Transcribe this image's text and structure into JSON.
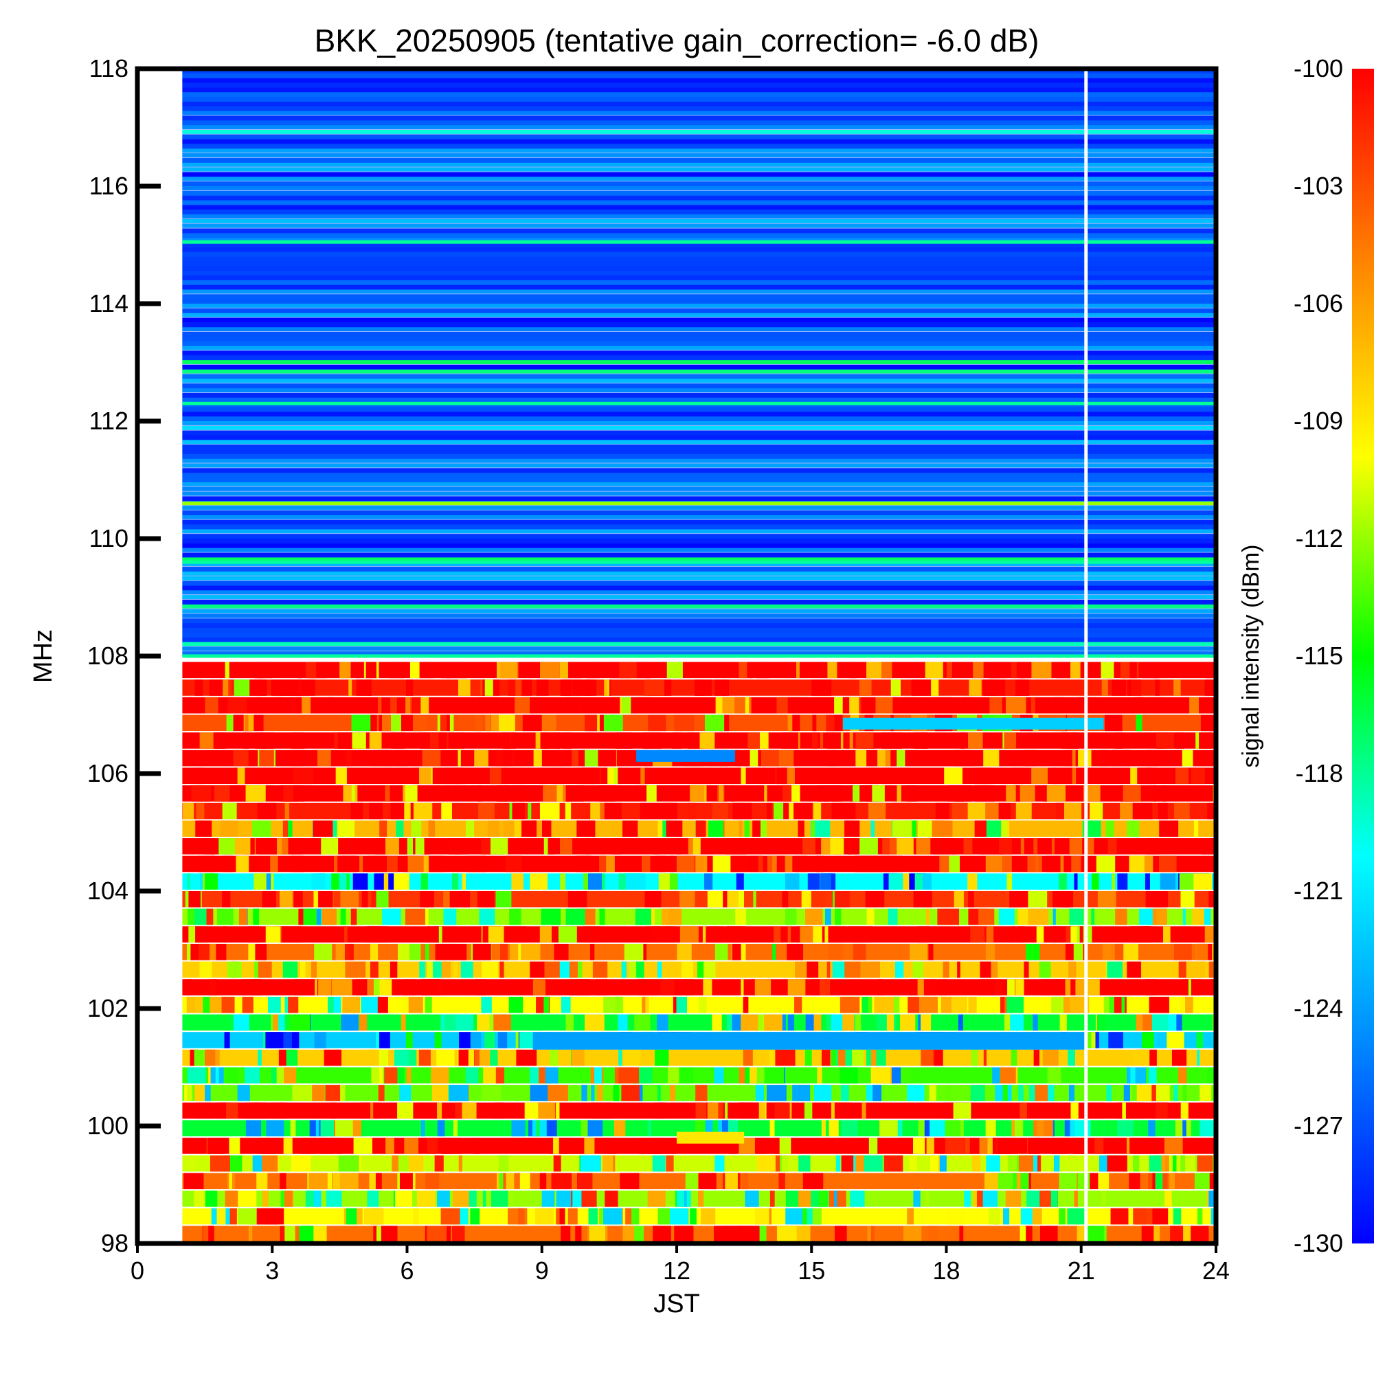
{
  "chart_data": {
    "type": "heatmap",
    "title": "BKK_20250905 (tentative gain_correction= -6.0 dB)",
    "xlabel": "JST",
    "ylabel": "MHz",
    "xlim": [
      0,
      24
    ],
    "ylim": [
      98,
      118
    ],
    "x_ticks": [
      0,
      3,
      6,
      9,
      12,
      15,
      18,
      21,
      24
    ],
    "y_ticks": [
      98,
      100,
      102,
      104,
      106,
      108,
      110,
      112,
      114,
      116,
      118
    ],
    "data_time_range": [
      1,
      24
    ],
    "data_gap_time": 21.1,
    "colorbar": {
      "label": "signal intensity (dBm)",
      "range": [
        -130,
        -100
      ],
      "ticks": [
        -100,
        -103,
        -106,
        -109,
        -112,
        -115,
        -118,
        -121,
        -124,
        -127,
        -130
      ],
      "colors": [
        "#0000ff",
        "#0088ff",
        "#00ffff",
        "#00ff00",
        "#ffff00",
        "#ff8800",
        "#ff0000"
      ]
    },
    "regions": [
      {
        "freq_range": [
          108,
          118
        ],
        "typical_dbm": -127,
        "description_level": "low"
      },
      {
        "freq_range": [
          98,
          108
        ],
        "typical_dbm": -100,
        "description_level": "high"
      }
    ],
    "strong_bands_mhz": [
      118.0,
      115.05,
      112.3,
      110.6,
      109.6,
      108.0
    ],
    "fm_band_rows": [
      {
        "freq": 107.75,
        "dbm": -100
      },
      {
        "freq": 107.45,
        "dbm": -101
      },
      {
        "freq": 107.15,
        "dbm": -100
      },
      {
        "freq": 106.85,
        "dbm": -103
      },
      {
        "freq": 106.55,
        "dbm": -100
      },
      {
        "freq": 106.25,
        "dbm": -100
      },
      {
        "freq": 105.95,
        "dbm": -100
      },
      {
        "freq": 105.65,
        "dbm": -100
      },
      {
        "freq": 105.35,
        "dbm": -101
      },
      {
        "freq": 105.05,
        "dbm": -107
      },
      {
        "freq": 104.75,
        "dbm": -100
      },
      {
        "freq": 104.45,
        "dbm": -100
      },
      {
        "freq": 104.15,
        "dbm": -120
      },
      {
        "freq": 103.85,
        "dbm": -102
      },
      {
        "freq": 103.55,
        "dbm": -112
      },
      {
        "freq": 103.25,
        "dbm": -100
      },
      {
        "freq": 102.95,
        "dbm": -104
      },
      {
        "freq": 102.65,
        "dbm": -108
      },
      {
        "freq": 102.35,
        "dbm": -100
      },
      {
        "freq": 102.05,
        "dbm": -110
      },
      {
        "freq": 101.75,
        "dbm": -116
      },
      {
        "freq": 101.45,
        "dbm": -122
      },
      {
        "freq": 101.15,
        "dbm": -108
      },
      {
        "freq": 100.85,
        "dbm": -114
      },
      {
        "freq": 100.55,
        "dbm": -113
      },
      {
        "freq": 100.25,
        "dbm": -100
      },
      {
        "freq": 99.95,
        "dbm": -116
      },
      {
        "freq": 99.65,
        "dbm": -100
      },
      {
        "freq": 99.35,
        "dbm": -111
      },
      {
        "freq": 99.05,
        "dbm": -104
      },
      {
        "freq": 98.75,
        "dbm": -112
      },
      {
        "freq": 98.45,
        "dbm": -110
      },
      {
        "freq": 98.15,
        "dbm": -104
      }
    ],
    "annotations": [
      {
        "freq_range": [
          106.75,
          106.95
        ],
        "time_range": [
          15.7,
          21.5
        ],
        "dbm": -122
      },
      {
        "freq_range": [
          106.2,
          106.4
        ],
        "time_range": [
          11.1,
          13.3
        ],
        "dbm": -125
      },
      {
        "freq_range": [
          101.3,
          101.6
        ],
        "time_range": [
          8.8,
          21.1
        ],
        "dbm": -124
      },
      {
        "freq_range": [
          99.7,
          99.9
        ],
        "time_range": [
          12.0,
          13.5
        ],
        "dbm": -109
      }
    ]
  }
}
